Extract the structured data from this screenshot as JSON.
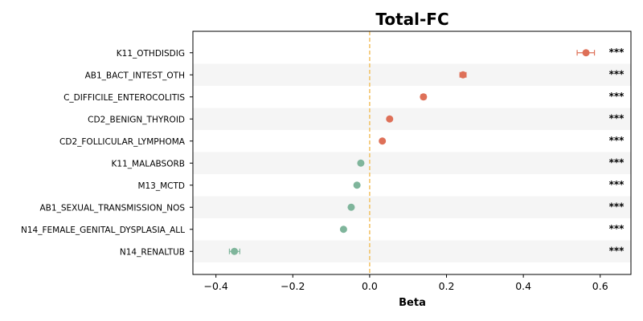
{
  "chart_data": {
    "type": "scatter",
    "title": "Total-FC",
    "xlabel": "Beta",
    "ylabel": "",
    "xlim": [
      -0.46,
      0.68
    ],
    "xticks": [
      -0.4,
      -0.2,
      0.0,
      0.2,
      0.4,
      0.6
    ],
    "xtick_labels": [
      "−0.4",
      "−0.2",
      "0.0",
      "0.2",
      "0.4",
      "0.6"
    ],
    "reference_line": 0,
    "grid": false,
    "colors": {
      "positive": "#DE7058",
      "negative": "#7FB59B",
      "reference_line": "#F2C46B",
      "band": "#F5F5F5"
    },
    "points": [
      {
        "label": "K11_OTHDISDIG",
        "beta": 0.563,
        "ci": [
          0.54,
          0.585
        ],
        "sig": "***"
      },
      {
        "label": "AB1_BACT_INTEST_OTH",
        "beta": 0.243,
        "ci": [
          0.235,
          0.251
        ],
        "sig": "***"
      },
      {
        "label": "C_DIFFICILE_ENTEROCOLITIS",
        "beta": 0.14,
        "ci": [
          0.134,
          0.146
        ],
        "sig": "***"
      },
      {
        "label": "CD2_BENIGN_THYROID",
        "beta": 0.052,
        "ci": [
          0.048,
          0.056
        ],
        "sig": "***"
      },
      {
        "label": "CD2_FOLLICULAR_LYMPHOMA",
        "beta": 0.033,
        "ci": [
          0.029,
          0.037
        ],
        "sig": "***"
      },
      {
        "label": "K11_MALABSORB",
        "beta": -0.023,
        "ci": [
          -0.027,
          -0.019
        ],
        "sig": "***"
      },
      {
        "label": "M13_MCTD",
        "beta": -0.033,
        "ci": [
          -0.037,
          -0.029
        ],
        "sig": "***"
      },
      {
        "label": "AB1_SEXUAL_TRANSMISSION_NOS",
        "beta": -0.048,
        "ci": [
          -0.052,
          -0.044
        ],
        "sig": "***"
      },
      {
        "label": "N14_FEMALE_GENITAL_DYSPLASIA_ALL",
        "beta": -0.068,
        "ci": [
          -0.072,
          -0.064
        ],
        "sig": "***"
      },
      {
        "label": "N14_RENALTUB",
        "beta": -0.352,
        "ci": [
          -0.365,
          -0.338
        ],
        "sig": "***"
      }
    ]
  }
}
